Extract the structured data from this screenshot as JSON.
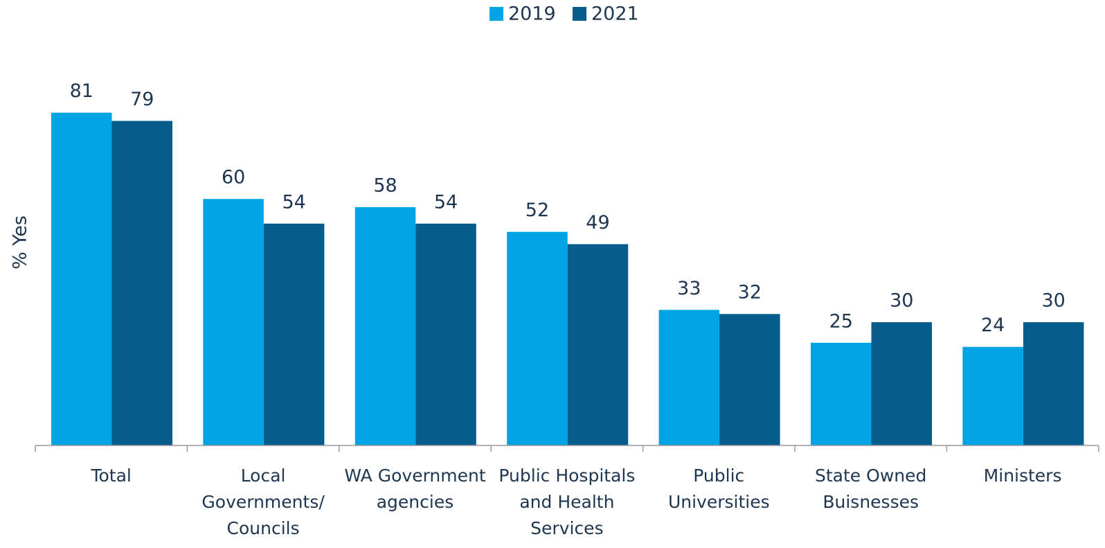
{
  "chart_data": {
    "type": "bar",
    "y_label": "% Yes",
    "categories": [
      "Total",
      "Local Governments/ Councils",
      "WA Government agencies",
      "Public Hospitals and Health Services",
      "Public Universities",
      "State Owned Buisnesses",
      "Ministers"
    ],
    "series": [
      {
        "name": "2019",
        "color": "#00a3e3",
        "values": [
          81,
          60,
          58,
          52,
          33,
          25,
          24
        ]
      },
      {
        "name": "2021",
        "color": "#065d8c",
        "values": [
          79,
          54,
          54,
          49,
          32,
          30,
          30
        ]
      }
    ],
    "ylim": [
      0,
      100
    ],
    "legend": "top"
  }
}
